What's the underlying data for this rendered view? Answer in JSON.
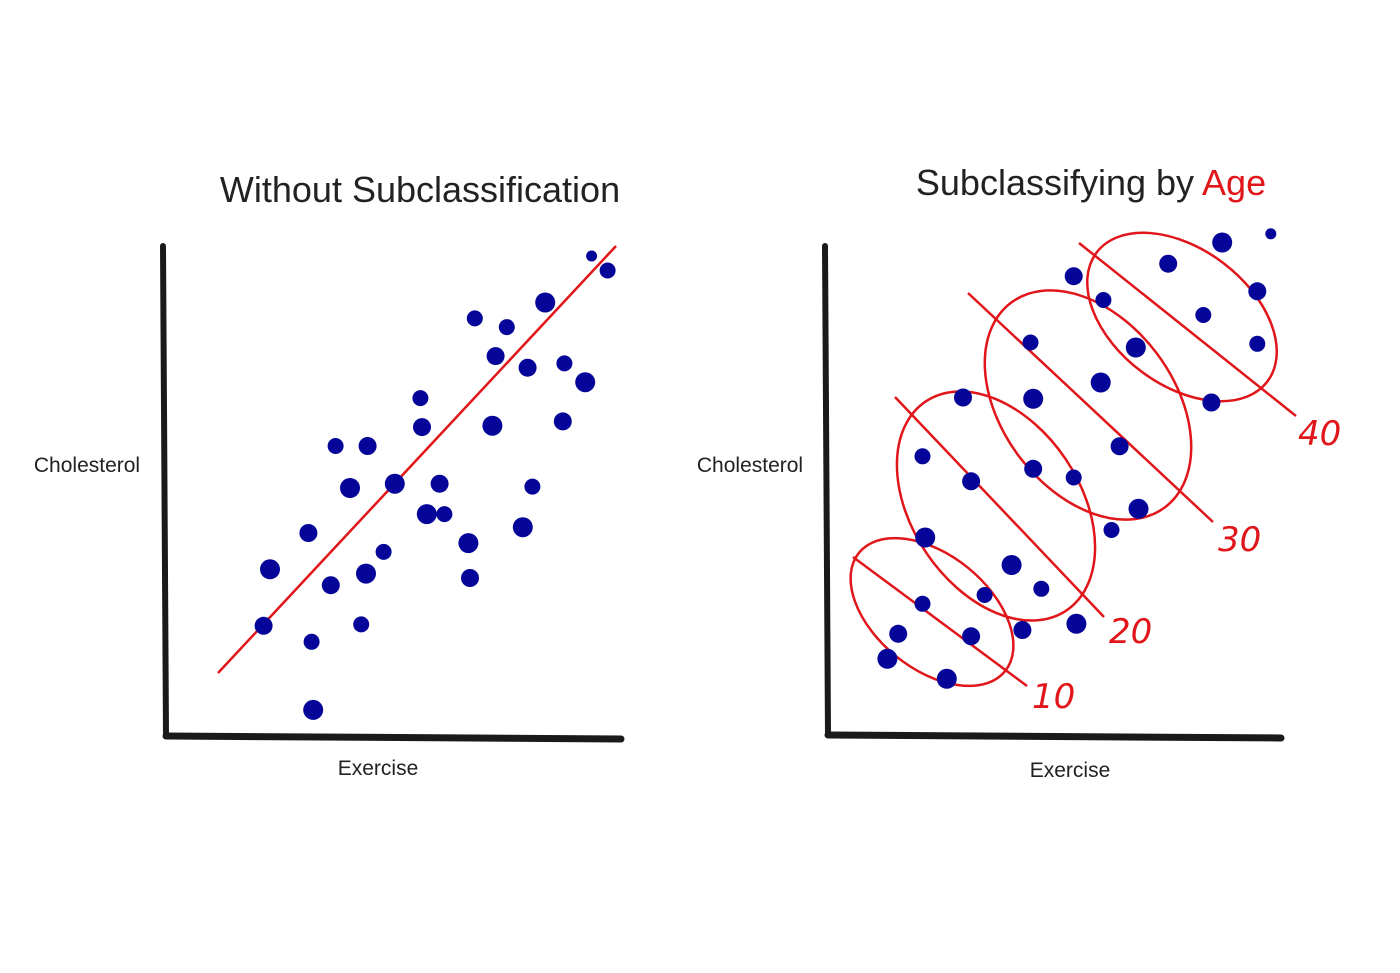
{
  "colors": {
    "dot": "#050599",
    "accent": "#e0161b",
    "axis": "#1a1a1a",
    "text": "#222222"
  },
  "left_panel": {
    "title": "Without Subclassification",
    "ylabel": "Cholesterol",
    "xlabel": "Exercise"
  },
  "right_panel": {
    "title_prefix": "Subclassifying by ",
    "title_highlight": "Age",
    "ylabel": "Cholesterol",
    "xlabel": "Exercise",
    "age_groups": [
      "10",
      "20",
      "30",
      "40"
    ]
  },
  "chart_data": [
    {
      "type": "scatter",
      "title": "Without Subclassification",
      "xlabel": "Exercise",
      "ylabel": "Cholesterol",
      "trend_line": "single positive slope across all points",
      "points": [
        {
          "x": 6.5,
          "y": 11.5
        },
        {
          "x": 6.1,
          "y": 7.6
        },
        {
          "x": 9.1,
          "y": 6.5
        },
        {
          "x": 9.2,
          "y": 1.8
        },
        {
          "x": 10.3,
          "y": 10.4
        },
        {
          "x": 12.2,
          "y": 7.7
        },
        {
          "x": 12.5,
          "y": 11.2
        },
        {
          "x": 8.9,
          "y": 14.0
        },
        {
          "x": 10.6,
          "y": 20.0
        },
        {
          "x": 11.5,
          "y": 17.1
        },
        {
          "x": 12.6,
          "y": 20.0
        },
        {
          "x": 13.6,
          "y": 12.7
        },
        {
          "x": 14.3,
          "y": 17.4
        },
        {
          "x": 16.0,
          "y": 21.3
        },
        {
          "x": 15.9,
          "y": 23.3
        },
        {
          "x": 16.3,
          "y": 15.3
        },
        {
          "x": 17.1,
          "y": 17.4
        },
        {
          "x": 17.4,
          "y": 15.3
        },
        {
          "x": 18.9,
          "y": 13.3
        },
        {
          "x": 19.0,
          "y": 10.9
        },
        {
          "x": 19.3,
          "y": 28.8
        },
        {
          "x": 20.4,
          "y": 21.4
        },
        {
          "x": 20.6,
          "y": 26.2
        },
        {
          "x": 21.3,
          "y": 28.2
        },
        {
          "x": 22.3,
          "y": 14.4
        },
        {
          "x": 22.6,
          "y": 25.4
        },
        {
          "x": 22.9,
          "y": 17.2
        },
        {
          "x": 23.7,
          "y": 29.9
        },
        {
          "x": 24.8,
          "y": 21.7
        },
        {
          "x": 24.9,
          "y": 25.7
        },
        {
          "x": 26.2,
          "y": 24.4
        },
        {
          "x": 26.6,
          "y": 33.1
        },
        {
          "x": 27.6,
          "y": 32.1
        }
      ]
    },
    {
      "type": "scatter",
      "title": "Subclassifying by Age",
      "xlabel": "Exercise",
      "ylabel": "Cholesterol",
      "groups": [
        {
          "name": "10",
          "trend": "negative",
          "points": [
            {
              "x": 2.2,
              "y": 6.1
            },
            {
              "x": 2.6,
              "y": 8.1
            },
            {
              "x": 3.5,
              "y": 10.5
            },
            {
              "x": 4.4,
              "y": 4.5
            },
            {
              "x": 5.3,
              "y": 7.9
            }
          ]
        },
        {
          "name": "20",
          "trend": "negative",
          "points": [
            {
              "x": 3.5,
              "y": 22.3
            },
            {
              "x": 3.6,
              "y": 15.8
            },
            {
              "x": 5.3,
              "y": 20.3
            },
            {
              "x": 5.8,
              "y": 11.2
            },
            {
              "x": 6.8,
              "y": 13.6
            },
            {
              "x": 7.2,
              "y": 8.4
            },
            {
              "x": 7.9,
              "y": 11.7
            },
            {
              "x": 9.2,
              "y": 8.9
            }
          ]
        },
        {
          "name": "30",
          "trend": "negative",
          "points": [
            {
              "x": 5.0,
              "y": 27.0
            },
            {
              "x": 7.5,
              "y": 31.4
            },
            {
              "x": 7.6,
              "y": 26.9
            },
            {
              "x": 7.6,
              "y": 21.3
            },
            {
              "x": 9.1,
              "y": 20.6
            },
            {
              "x": 10.1,
              "y": 28.2
            },
            {
              "x": 10.8,
              "y": 23.1
            },
            {
              "x": 10.5,
              "y": 16.4
            },
            {
              "x": 11.5,
              "y": 18.1
            }
          ]
        },
        {
          "name": "40",
          "trend": "negative",
          "points": [
            {
              "x": 9.1,
              "y": 36.7
            },
            {
              "x": 10.2,
              "y": 34.8
            },
            {
              "x": 11.4,
              "y": 31.0
            },
            {
              "x": 12.6,
              "y": 37.7
            },
            {
              "x": 13.9,
              "y": 33.6
            },
            {
              "x": 14.6,
              "y": 39.4
            },
            {
              "x": 15.9,
              "y": 35.5
            },
            {
              "x": 15.9,
              "y": 31.3
            },
            {
              "x": 16.4,
              "y": 40.1
            },
            {
              "x": 14.2,
              "y": 26.6
            }
          ]
        }
      ]
    }
  ]
}
